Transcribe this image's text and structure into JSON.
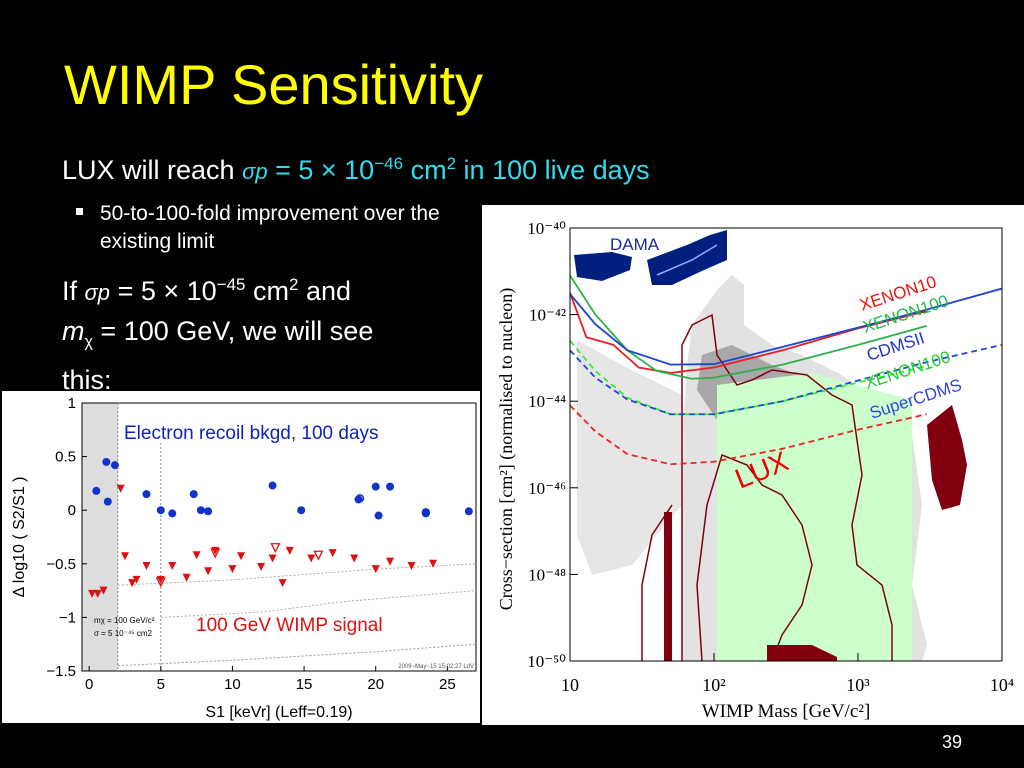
{
  "slide": {
    "title": "WIMP Sensitivity",
    "line1_prefix": "LUX will reach",
    "line1_sigma": "σp",
    "line1_value": "= 5 × 10",
    "line1_exp": "−46",
    "line1_unit": "cm",
    "line1_unit_exp": "2",
    "line1_suffix": "in 100 live days",
    "bullet": "50-to-100-fold improvement over the existing limit",
    "para_if": "If",
    "para_sigma": "σp",
    "para_value": "= 5 × 10",
    "para_exp": "−45",
    "para_unit": "cm",
    "para_unit_exp": "2",
    "para_and": "and",
    "para_m": "m",
    "para_msub": "χ",
    "para_mass": "= 100 GeV, we will see this:",
    "page_number": "39"
  },
  "colors": {
    "title": "#ffff00",
    "accent_cyan": "#33ddee",
    "blue_points": "#1133cc",
    "red_points": "#dd1111",
    "dama": "#002080",
    "lux_band": "#ccffcc",
    "lux_red": "#ee0000",
    "dark_red": "#800010"
  },
  "chart_data": [
    {
      "type": "scatter",
      "ylabel": "Δ log10 ( S2/S1 )",
      "xlabel": "S1 [keVr] (Leff=0.19)",
      "xlim": [
        -0.5,
        27
      ],
      "ylim": [
        -1.5,
        1
      ],
      "x_ticks": [
        "0",
        "5",
        "10",
        "15",
        "20",
        "25"
      ],
      "y_ticks": [
        "1",
        "0.5",
        "0",
        "−0.5",
        "−1",
        "−1.5"
      ],
      "annotation_top": "Electron recoil bkgd, 100 days",
      "annotation_bottom": "100 GeV WIMP signal",
      "inset_line1": "mχ = 100 GeV/c²",
      "inset_line2": "σ = 5 10⁻⁴⁵ cm2",
      "timestamp": "2009−May−15 15:02:27 LdV",
      "series": [
        {
          "name": "Electron recoil bkgd, 100 days",
          "marker": "circle",
          "points": [
            [
              0.5,
              0.18
            ],
            [
              1.2,
              0.45
            ],
            [
              1.8,
              0.42
            ],
            [
              1.3,
              0.08
            ],
            [
              4.0,
              0.15
            ],
            [
              5.0,
              0.0
            ],
            [
              5.8,
              -0.03
            ],
            [
              7.3,
              0.15
            ],
            [
              7.8,
              0.0
            ],
            [
              8.3,
              -0.01
            ],
            [
              12.8,
              0.23
            ],
            [
              14.8,
              0.0
            ],
            [
              18.8,
              0.1
            ],
            [
              20.0,
              0.22
            ],
            [
              21.0,
              0.22
            ],
            [
              20.2,
              -0.05
            ],
            [
              23.5,
              -0.03
            ],
            [
              26.5,
              -0.01
            ]
          ]
        },
        {
          "name": "Electron recoil bkgd, 100 days (open)",
          "marker": "open-circle",
          "points": [
            [
              18.9,
              0.11
            ],
            [
              23.5,
              -0.02
            ]
          ]
        },
        {
          "name": "100 GeV WIMP signal",
          "marker": "triangle",
          "points": [
            [
              0.2,
              -0.78
            ],
            [
              0.6,
              -0.78
            ],
            [
              1.0,
              -0.75
            ],
            [
              2.2,
              0.2
            ],
            [
              2.5,
              -0.43
            ],
            [
              3.0,
              -0.68
            ],
            [
              3.3,
              -0.65
            ],
            [
              4.0,
              -0.52
            ],
            [
              5.0,
              -0.65
            ],
            [
              5.8,
              -0.52
            ],
            [
              6.8,
              -0.63
            ],
            [
              7.5,
              -0.42
            ],
            [
              8.3,
              -0.57
            ],
            [
              8.8,
              -0.38
            ],
            [
              10.0,
              -0.55
            ],
            [
              10.6,
              -0.43
            ],
            [
              12.0,
              -0.53
            ],
            [
              12.8,
              -0.45
            ],
            [
              13.5,
              -0.68
            ],
            [
              14.0,
              -0.38
            ],
            [
              15.5,
              -0.45
            ],
            [
              17.0,
              -0.4
            ],
            [
              18.5,
              -0.45
            ],
            [
              20.0,
              -0.55
            ],
            [
              21.0,
              -0.48
            ],
            [
              22.5,
              -0.52
            ],
            [
              24.0,
              -0.5
            ]
          ]
        },
        {
          "name": "100 GeV WIMP signal (open)",
          "marker": "open-triangle",
          "points": [
            [
              5.0,
              -0.67
            ],
            [
              8.8,
              -0.4
            ],
            [
              13.0,
              -0.35
            ],
            [
              16.0,
              -0.42
            ]
          ]
        }
      ]
    },
    {
      "type": "line",
      "title": "",
      "xlabel": "WIMP Mass [GeV/c²]",
      "ylabel": "Cross−section [cm²] (normalised to nucleon)",
      "x_scale": "log",
      "y_scale": "log",
      "xlim": [
        10,
        10000
      ],
      "ylim": [
        1e-50,
        1e-40
      ],
      "x_ticks": [
        "10",
        "10²",
        "10³",
        "10⁴"
      ],
      "y_ticks": [
        "10⁻⁴⁰",
        "10⁻⁴²",
        "10⁻⁴⁴",
        "10⁻⁴⁶",
        "10⁻⁴⁸",
        "10⁻⁵⁰"
      ],
      "labels": {
        "dama": "DAMA",
        "xenon10": "XENON10",
        "xenon100_a": "XENON100",
        "cdmsii": "CDMSII",
        "xenon100_b": "XENON100",
        "supercdms": "SuperCDMS",
        "lux": "LUX"
      },
      "series": [
        {
          "name": "XENON10",
          "color": "#e8202a",
          "style": "solid",
          "points": [
            [
              10,
              3.2e-42
            ],
            [
              13,
              3e-43
            ],
            [
              20,
              2e-43
            ],
            [
              30,
              6e-44
            ],
            [
              50,
              4.5e-44
            ],
            [
              100,
              6e-44
            ],
            [
              300,
              1.5e-43
            ],
            [
              1000,
              4.8e-43
            ],
            [
              3000,
              1.2e-42
            ]
          ]
        },
        {
          "name": "XENON100",
          "color": "#2bb34a",
          "style": "solid",
          "points": [
            [
              10,
              8e-42
            ],
            [
              15,
              1e-42
            ],
            [
              25,
              1.5e-43
            ],
            [
              40,
              5e-44
            ],
            [
              70,
              3.3e-44
            ],
            [
              100,
              3.5e-44
            ],
            [
              300,
              7e-44
            ],
            [
              1000,
              2e-43
            ],
            [
              3000,
              5.5e-43
            ]
          ]
        },
        {
          "name": "CDMSII",
          "color": "#2244cc",
          "style": "solid",
          "points": [
            [
              10,
              3e-42
            ],
            [
              15,
              6e-43
            ],
            [
              25,
              1.5e-43
            ],
            [
              50,
              7e-44
            ],
            [
              100,
              7.2e-44
            ],
            [
              300,
              1.8e-43
            ],
            [
              1000,
              5e-43
            ],
            [
              3000,
              1.3e-42
            ],
            [
              10000,
              4e-42
            ]
          ]
        },
        {
          "name": "XENON100 (projected)",
          "color": "#33ee33",
          "style": "dashed",
          "points": [
            [
              10,
              2.5e-43
            ],
            [
              15,
              5e-44
            ],
            [
              25,
              1.2e-44
            ],
            [
              50,
              5e-45
            ],
            [
              100,
              5e-45
            ],
            [
              300,
              1e-44
            ],
            [
              1000,
              2.7e-44
            ],
            [
              3000,
              6.5e-44
            ]
          ]
        },
        {
          "name": "SuperCDMS",
          "color": "#2244dd",
          "style": "dashed",
          "points": [
            [
              10,
              1.5e-43
            ],
            [
              15,
              3.5e-44
            ],
            [
              25,
              1.1e-44
            ],
            [
              50,
              5e-45
            ],
            [
              100,
              5e-45
            ],
            [
              300,
              1e-44
            ],
            [
              1000,
              3e-44
            ],
            [
              3000,
              8e-44
            ],
            [
              10000,
              2e-43
            ]
          ]
        },
        {
          "name": "LUX (projected)",
          "color": "#ee2222",
          "style": "dashed",
          "points": [
            [
              10,
              8e-45
            ],
            [
              15,
              2e-45
            ],
            [
              25,
              6e-46
            ],
            [
              50,
              3.5e-46
            ],
            [
              100,
              4e-46
            ],
            [
              300,
              8e-46
            ],
            [
              1000,
              2.2e-45
            ],
            [
              3000,
              5e-45
            ]
          ]
        }
      ]
    }
  ]
}
